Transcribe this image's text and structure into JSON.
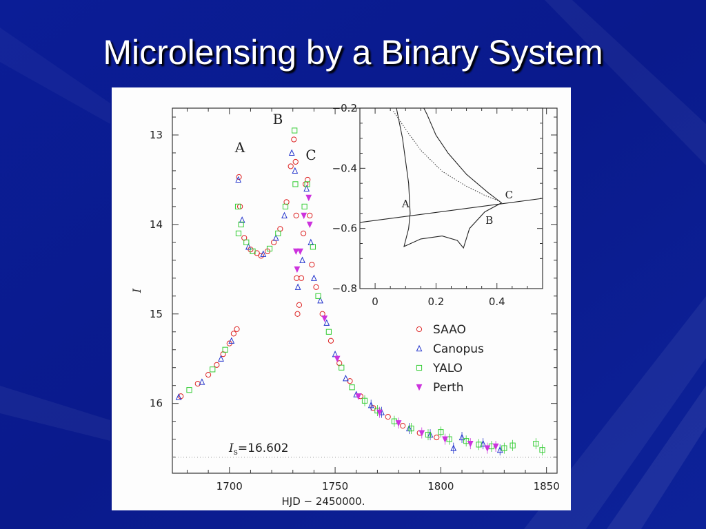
{
  "slide": {
    "title": "Microlensing by a Binary System",
    "colors": {
      "background": "#0a1a8c",
      "title": "#ffffff"
    }
  },
  "chart_data": [
    {
      "type": "scatter",
      "xlabel": "HJD − 2450000.",
      "ylabel": "I",
      "xlim": [
        1673,
        1855
      ],
      "ylim": [
        16.78,
        12.7
      ],
      "y_inverted": true,
      "x_ticks": [
        "1700",
        "1750",
        "1800",
        "1850"
      ],
      "y_ticks": [
        "13",
        "14",
        "15",
        "16"
      ],
      "annotations": {
        "peak_a": "A",
        "peak_b": "B",
        "peak_c": "C",
        "baseline_prefix": "I",
        "baseline_sub": "s",
        "baseline_value": "=16.602"
      },
      "baseline": 16.602,
      "legend_position": "middle-right",
      "series": [
        {
          "name": "SAAO",
          "marker": "circle",
          "color": "#dd2222",
          "points": [
            [
              1677,
              15.92
            ],
            [
              1685,
              15.78
            ],
            [
              1690,
              15.68
            ],
            [
              1694,
              15.57
            ],
            [
              1697,
              15.45
            ],
            [
              1700,
              15.33
            ],
            [
              1702,
              15.22
            ],
            [
              1703.5,
              15.17
            ],
            [
              1704.5,
              13.47
            ],
            [
              1705,
              13.8
            ],
            [
              1707,
              14.15
            ],
            [
              1710,
              14.28
            ],
            [
              1713,
              14.32
            ],
            [
              1715,
              14.35
            ],
            [
              1718,
              14.3
            ],
            [
              1721,
              14.2
            ],
            [
              1724,
              14.05
            ],
            [
              1727,
              13.75
            ],
            [
              1729,
              13.35
            ],
            [
              1730.5,
              13.05
            ],
            [
              1731.3,
              13.3
            ],
            [
              1731.6,
              13.9
            ],
            [
              1731.8,
              14.6
            ],
            [
              1732.2,
              15.0
            ],
            [
              1733,
              14.9
            ],
            [
              1734,
              14.6
            ],
            [
              1735,
              14.1
            ],
            [
              1736,
              13.55
            ],
            [
              1737,
              13.5
            ],
            [
              1738,
              13.9
            ],
            [
              1739,
              14.45
            ],
            [
              1741,
              14.7
            ],
            [
              1744,
              15.0
            ],
            [
              1748,
              15.3
            ],
            [
              1752,
              15.55
            ],
            [
              1757,
              15.75
            ],
            [
              1762,
              15.92
            ],
            [
              1768,
              16.05
            ],
            [
              1775,
              16.15
            ],
            [
              1782,
              16.25
            ],
            [
              1790,
              16.33
            ],
            [
              1798,
              16.38
            ]
          ]
        },
        {
          "name": "Canopus",
          "marker": "triangle",
          "color": "#2233cc",
          "points": [
            [
              1676,
              15.93
            ],
            [
              1687,
              15.76
            ],
            [
              1696,
              15.5
            ],
            [
              1701,
              15.3
            ],
            [
              1704.2,
              13.5
            ],
            [
              1706,
              13.95
            ],
            [
              1709,
              14.25
            ],
            [
              1716,
              14.33
            ],
            [
              1722,
              14.15
            ],
            [
              1726,
              13.9
            ],
            [
              1729.5,
              13.2
            ],
            [
              1731,
              13.4
            ],
            [
              1732.4,
              14.7
            ],
            [
              1734.5,
              14.4
            ],
            [
              1736.5,
              13.6
            ],
            [
              1738.5,
              14.2
            ],
            [
              1740,
              14.6
            ],
            [
              1743,
              14.85
            ],
            [
              1746,
              15.1
            ],
            [
              1750,
              15.45
            ],
            [
              1755,
              15.72
            ],
            [
              1760,
              15.9
            ],
            [
              1767,
              16.02
            ],
            [
              1772,
              16.1
            ],
            [
              1785,
              16.28
            ],
            [
              1795,
              16.35
            ],
            [
              1806,
              16.5
            ],
            [
              1810,
              16.38
            ],
            [
              1820,
              16.45
            ],
            [
              1828,
              16.52
            ]
          ]
        },
        {
          "name": "YALO",
          "marker": "square",
          "color": "#33cc33",
          "points": [
            [
              1681,
              15.85
            ],
            [
              1692,
              15.62
            ],
            [
              1698,
              15.4
            ],
            [
              1704,
              13.8
            ],
            [
              1704.3,
              14.1
            ],
            [
              1705.5,
              14.0
            ],
            [
              1708,
              14.2
            ],
            [
              1711,
              14.3
            ],
            [
              1719,
              14.27
            ],
            [
              1723,
              14.1
            ],
            [
              1726.5,
              13.8
            ],
            [
              1730.8,
              12.95
            ],
            [
              1731.2,
              13.55
            ],
            [
              1735.5,
              13.8
            ],
            [
              1736.8,
              13.55
            ],
            [
              1739.5,
              14.25
            ],
            [
              1742,
              14.8
            ],
            [
              1747,
              15.2
            ],
            [
              1753,
              15.6
            ],
            [
              1758,
              15.82
            ],
            [
              1764,
              15.97
            ],
            [
              1770,
              16.08
            ],
            [
              1778,
              16.2
            ],
            [
              1786,
              16.28
            ],
            [
              1794,
              16.35
            ],
            [
              1800,
              16.32
            ],
            [
              1804,
              16.4
            ],
            [
              1812,
              16.42
            ],
            [
              1818,
              16.46
            ],
            [
              1824,
              16.48
            ],
            [
              1830,
              16.5
            ],
            [
              1834,
              16.47
            ],
            [
              1845,
              16.45
            ],
            [
              1848,
              16.52
            ]
          ]
        },
        {
          "name": "Perth",
          "marker": "triangle-down",
          "color": "#cc33dd",
          "points": [
            [
              1731.5,
              14.3
            ],
            [
              1732,
              14.5
            ],
            [
              1733.5,
              14.3
            ],
            [
              1735.2,
              13.9
            ],
            [
              1737.5,
              13.7
            ],
            [
              1738,
              14.0
            ],
            [
              1745,
              15.05
            ],
            [
              1751,
              15.5
            ],
            [
              1761,
              15.92
            ],
            [
              1771,
              16.1
            ],
            [
              1780,
              16.22
            ],
            [
              1791,
              16.33
            ],
            [
              1802,
              16.4
            ],
            [
              1814,
              16.45
            ],
            [
              1822,
              16.5
            ],
            [
              1826,
              16.48
            ]
          ]
        }
      ]
    },
    {
      "type": "line",
      "role": "inset",
      "xlim": [
        -0.05,
        0.55
      ],
      "ylim": [
        -0.2,
        -0.8
      ],
      "x_ticks": [
        "0",
        "0.2",
        "0.4"
      ],
      "y_ticks": [
        "−0.2",
        "−0.4",
        "−0.6",
        "−0.8"
      ],
      "annotations": {
        "pt_a": "A",
        "pt_b": "B",
        "pt_c": "C"
      },
      "trajectory": [
        [
          -0.05,
          -0.58
        ],
        [
          0.55,
          -0.5
        ]
      ],
      "caustic": [
        [
          0.07,
          -0.2
        ],
        [
          0.09,
          -0.3
        ],
        [
          0.11,
          -0.45
        ],
        [
          0.115,
          -0.55
        ],
        [
          0.11,
          -0.6
        ],
        [
          0.095,
          -0.66
        ],
        [
          0.15,
          -0.635
        ],
        [
          0.22,
          -0.625
        ],
        [
          0.27,
          -0.64
        ],
        [
          0.29,
          -0.665
        ],
        [
          0.31,
          -0.6
        ],
        [
          0.36,
          -0.545
        ],
        [
          0.415,
          -0.515
        ],
        [
          0.37,
          -0.48
        ],
        [
          0.3,
          -0.42
        ],
        [
          0.24,
          -0.35
        ],
        [
          0.2,
          -0.29
        ],
        [
          0.17,
          -0.22
        ],
        [
          0.16,
          -0.2
        ]
      ],
      "dotted_curve": [
        [
          0.06,
          -0.21
        ],
        [
          0.1,
          -0.27
        ],
        [
          0.15,
          -0.34
        ],
        [
          0.22,
          -0.41
        ],
        [
          0.3,
          -0.46
        ],
        [
          0.36,
          -0.49
        ],
        [
          0.41,
          -0.51
        ]
      ]
    }
  ]
}
